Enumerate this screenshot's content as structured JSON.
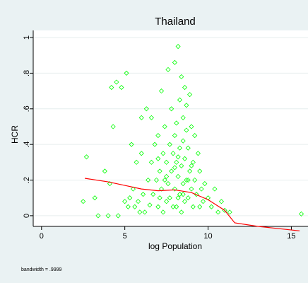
{
  "chart_data": {
    "type": "scatter",
    "title": "Thailand",
    "x_label": "log Population",
    "y_label": "HCR",
    "note": "bandwidth = .9999",
    "color": "#00ff00",
    "grid": true,
    "xlim": [
      -0.5,
      16
    ],
    "ylim": [
      -0.06,
      1.04
    ],
    "xticks": [
      0,
      5,
      10,
      15
    ],
    "yticks": [
      0,
      {
        "value": 0.2,
        "label": ".2"
      },
      {
        "value": 0.4,
        "label": ".4"
      },
      {
        "value": 0.6,
        "label": ".6"
      },
      {
        "value": 0.8,
        "label": ".8"
      },
      1
    ],
    "x": [
      2.5,
      2.7,
      3.2,
      3.4,
      3.8,
      4.0,
      4.2,
      4.3,
      4.5,
      4.6,
      4.8,
      5.0,
      5.1,
      5.2,
      5.3,
      5.5,
      5.6,
      5.7,
      5.8,
      5.9,
      6.0,
      6.1,
      6.2,
      6.3,
      6.4,
      6.5,
      6.6,
      6.7,
      6.8,
      6.9,
      7.0,
      7.0,
      7.1,
      7.1,
      7.2,
      7.2,
      7.3,
      7.3,
      7.4,
      7.4,
      7.5,
      7.5,
      7.6,
      7.6,
      7.7,
      7.7,
      7.8,
      7.8,
      7.9,
      7.9,
      8.0,
      8.0,
      8.0,
      8.1,
      8.1,
      8.1,
      8.2,
      8.2,
      8.2,
      8.3,
      8.3,
      8.3,
      8.4,
      8.4,
      8.4,
      8.5,
      8.5,
      8.5,
      8.6,
      8.6,
      8.6,
      8.7,
      8.7,
      8.7,
      8.8,
      8.8,
      8.9,
      8.9,
      9.0,
      9.0,
      9.1,
      9.1,
      9.2,
      9.2,
      9.3,
      9.4,
      9.5,
      9.6,
      9.7,
      9.8,
      10.0,
      10.2,
      10.4,
      10.6,
      10.8,
      11.0,
      11.3,
      15.6,
      4.1,
      5.4,
      6.0,
      6.6,
      7.5,
      8.0,
      8.2,
      8.5,
      9.0,
      9.5,
      7.0,
      8.8
    ],
    "values": [
      0.08,
      0.33,
      0.1,
      0.0,
      0.25,
      0.0,
      0.72,
      0.5,
      0.75,
      0.0,
      0.72,
      0.08,
      0.8,
      0.05,
      0.1,
      0.15,
      0.05,
      0.3,
      0.08,
      0.02,
      0.55,
      0.12,
      0.02,
      0.6,
      0.2,
      0.06,
      0.3,
      0.12,
      0.4,
      0.2,
      0.05,
      0.45,
      0.25,
      0.1,
      0.7,
      0.15,
      0.35,
      0.02,
      0.5,
      0.2,
      0.3,
      0.08,
      0.82,
      0.18,
      0.4,
      0.1,
      0.6,
      0.25,
      0.35,
      0.05,
      0.86,
      0.45,
      0.15,
      0.3,
      0.05,
      0.52,
      0.95,
      0.22,
      0.1,
      0.65,
      0.38,
      0.12,
      0.78,
      0.28,
      0.02,
      0.55,
      0.18,
      0.42,
      0.72,
      0.08,
      0.32,
      0.48,
      0.2,
      0.62,
      0.1,
      0.38,
      0.68,
      0.25,
      0.15,
      0.5,
      0.3,
      0.05,
      0.45,
      0.2,
      0.12,
      0.35,
      0.25,
      0.15,
      0.08,
      0.18,
      0.1,
      0.05,
      0.15,
      0.02,
      0.08,
      0.03,
      0.02,
      0.01,
      0.18,
      0.4,
      0.35,
      0.55,
      0.22,
      0.27,
      0.33,
      0.12,
      0.28,
      0.05,
      0.32,
      0.2
    ],
    "fit": {
      "type": "line",
      "color": "#ff0000",
      "x": [
        2.6,
        4,
        5,
        6,
        7,
        8,
        9,
        10,
        11,
        11.6,
        13,
        15.5
      ],
      "values": [
        0.21,
        0.19,
        0.17,
        0.15,
        0.14,
        0.145,
        0.13,
        0.09,
        0.03,
        -0.04,
        -0.06,
        -0.085
      ]
    }
  }
}
